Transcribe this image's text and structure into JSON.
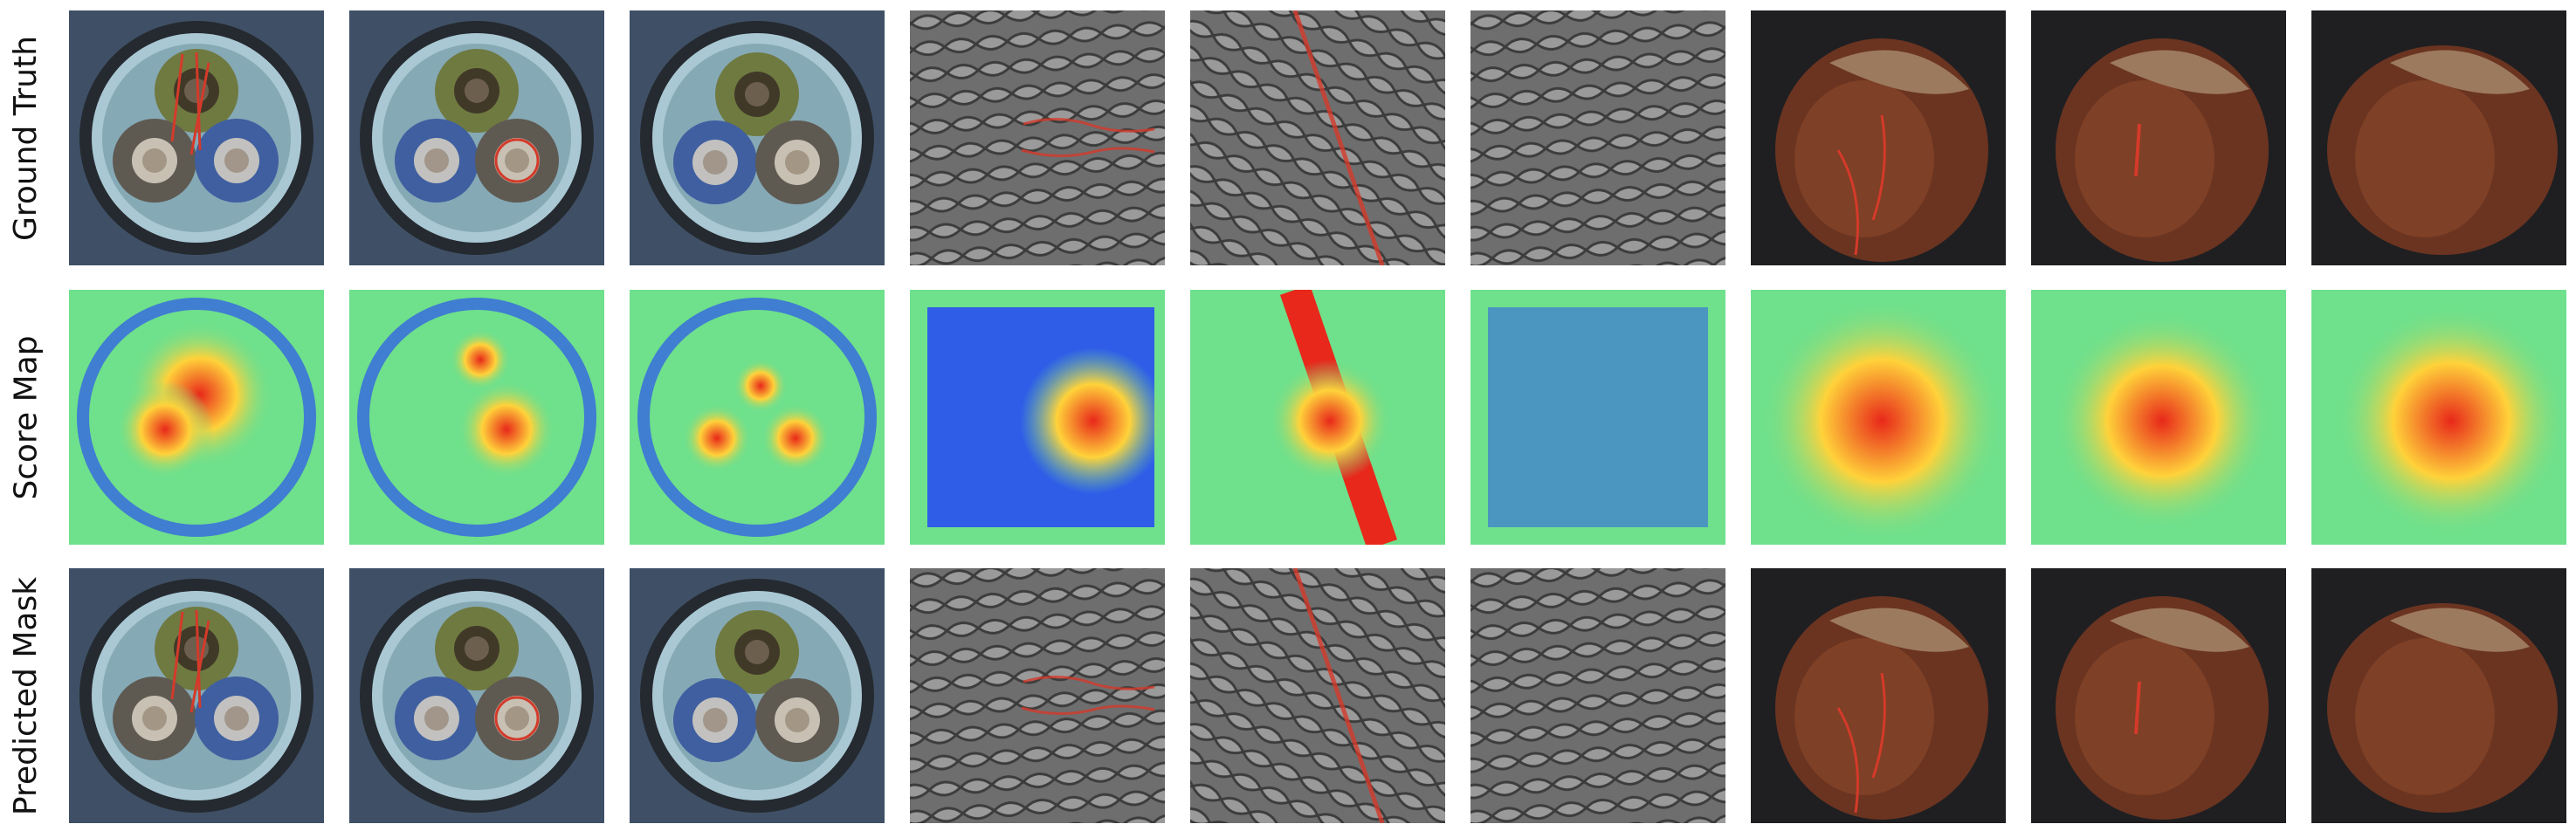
{
  "rows": [
    {
      "label": "Ground Truth"
    },
    {
      "label": "Score Map"
    },
    {
      "label": "Predicted Mask"
    }
  ],
  "columns": [
    "cable",
    "cable",
    "cable",
    "grid",
    "grid",
    "grid",
    "hazelnut",
    "hazelnut",
    "hazelnut"
  ],
  "colors": {
    "mask_outline": "#d43a2a",
    "heat_cold": "#1f3cff",
    "heat_mid": "#6fe08c",
    "heat_hot": "#e8281a"
  }
}
